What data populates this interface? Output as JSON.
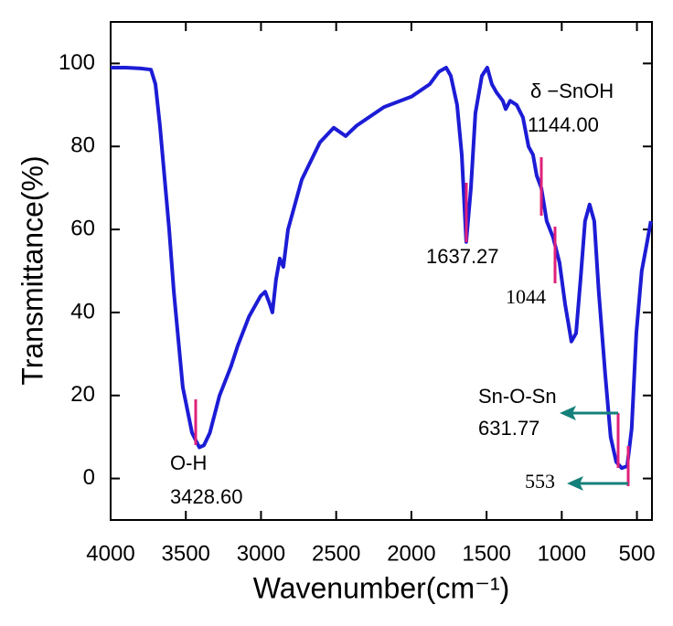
{
  "chart_data": {
    "type": "line",
    "x_label": "Wavenumber(cm⁻¹)",
    "y_label": "Transmittance(%)",
    "x": [
      4000,
      3900,
      3800,
      3732,
      3702,
      3672,
      3611,
      3580,
      3520,
      3459,
      3410,
      3380,
      3340,
      3276,
      3200,
      3155,
      3080,
      3003,
      2972,
      2942,
      2924,
      2900,
      2875,
      2851,
      2820,
      2729,
      2608,
      2516,
      2437,
      2364,
      2182,
      2000,
      1878,
      1817,
      1769,
      1738,
      1696,
      1665,
      1635,
      1604,
      1574,
      1531,
      1495,
      1465,
      1434,
      1392,
      1373,
      1343,
      1300,
      1258,
      1221,
      1191,
      1167,
      1136,
      1100,
      1057,
      1015,
      978,
      936,
      905,
      875,
      845,
      815,
      784,
      754,
      711,
      675,
      638,
      601,
      565,
      535,
      504,
      468,
      437,
      407
    ],
    "values": [
      99,
      99,
      98.8,
      98.5,
      95,
      85,
      60,
      45,
      22,
      11,
      7.5,
      8,
      11,
      20,
      27,
      32,
      39,
      44,
      45,
      42,
      40,
      48,
      53,
      51,
      60,
      72,
      81,
      84.5,
      82.5,
      85,
      89.5,
      92,
      95,
      98,
      99,
      97,
      90,
      78,
      57,
      70,
      88,
      97,
      99,
      95,
      93,
      91,
      89,
      91,
      90,
      87,
      80,
      78,
      73,
      70,
      62,
      58,
      52,
      42,
      33,
      35,
      48,
      62,
      66,
      62,
      45,
      25,
      10,
      4,
      2.5,
      3,
      12,
      35,
      50,
      56,
      62
    ],
    "color": "#1c1cd6",
    "xlim": [
      4000,
      400
    ],
    "xticks": [
      4000,
      3500,
      3000,
      2500,
      2000,
      1500,
      1000,
      500
    ],
    "ylim": [
      -10,
      110
    ],
    "yticks": [
      0,
      20,
      40,
      60,
      80,
      100
    ],
    "annotations": [
      "O-H",
      "3428.60",
      "1637.27",
      "δ −SnOH",
      "1144.00",
      "1044",
      "Sn-O-Sn",
      "631.77",
      "553"
    ]
  }
}
